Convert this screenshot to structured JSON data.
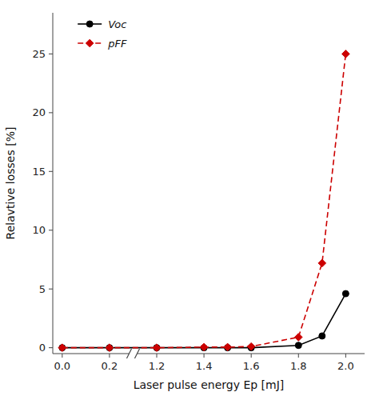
{
  "chart_data": {
    "type": "line",
    "xlabel": "Laser pulse energy Ep [mJ]",
    "ylabel": "Relavtive losses [%]",
    "x": [
      0.0,
      0.2,
      1.2,
      1.4,
      1.5,
      1.6,
      1.8,
      1.9,
      2.0
    ],
    "series": [
      {
        "name": "Voc",
        "color": "#000000",
        "marker": "circle",
        "line_style": "solid",
        "values": [
          0.0,
          0.0,
          0.0,
          0.0,
          0.0,
          0.0,
          0.2,
          1.0,
          4.6
        ]
      },
      {
        "name": "pFF",
        "color": "#cc0000",
        "marker": "diamond",
        "line_style": "dashed",
        "values": [
          0.0,
          0.0,
          0.0,
          0.05,
          0.05,
          0.1,
          0.9,
          7.2,
          25.0
        ]
      }
    ],
    "xlim": [
      -0.04,
      2.08
    ],
    "xticks": [
      {
        "value": 0.0,
        "label": "0.0"
      },
      0.2,
      1.2,
      1.4,
      1.6,
      1.8,
      {
        "value": 2.0,
        "label": "2.0"
      }
    ],
    "ylim": [
      -0.5,
      28.5
    ],
    "yticks": [
      0,
      5,
      10,
      15,
      20,
      25
    ],
    "grid": false,
    "legend": "upper left"
  }
}
